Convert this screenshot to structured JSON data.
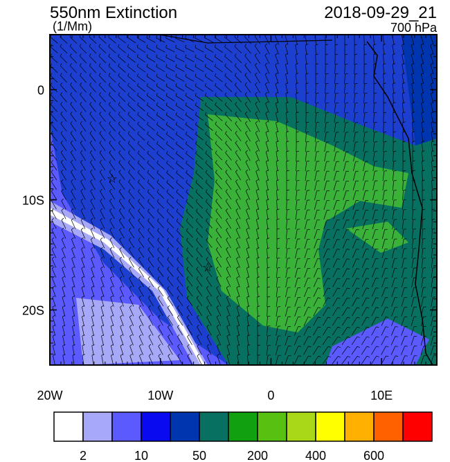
{
  "header": {
    "title": "550nm Extinction",
    "units": "(1/Mm)",
    "date": "2018-09-29_21",
    "level": "700 hPa"
  },
  "map": {
    "lonlim": [
      -20,
      15
    ],
    "latlim": [
      -25,
      5
    ],
    "lon_ticks": [
      {
        "value": -20,
        "label": "20W"
      },
      {
        "value": -10,
        "label": "10W"
      },
      0,
      {
        "value": 10,
        "label": "10E"
      }
    ],
    "lat_ticks": [
      0,
      {
        "value": -10,
        "label": "10S"
      },
      {
        "value": -20,
        "label": "20S"
      }
    ]
  },
  "colorbar": {
    "colors": [
      "#ffffff",
      "#a8a8f8",
      "#5a5aff",
      "#0a0af0",
      "#0035b0",
      "#087060",
      "#10a010",
      "#58c010",
      "#a8d818",
      "#ffff00",
      "#ffb000",
      "#ff6000",
      "#ff0000"
    ],
    "labels": [
      "2",
      "10",
      "50",
      "200",
      "400",
      "600"
    ]
  }
}
